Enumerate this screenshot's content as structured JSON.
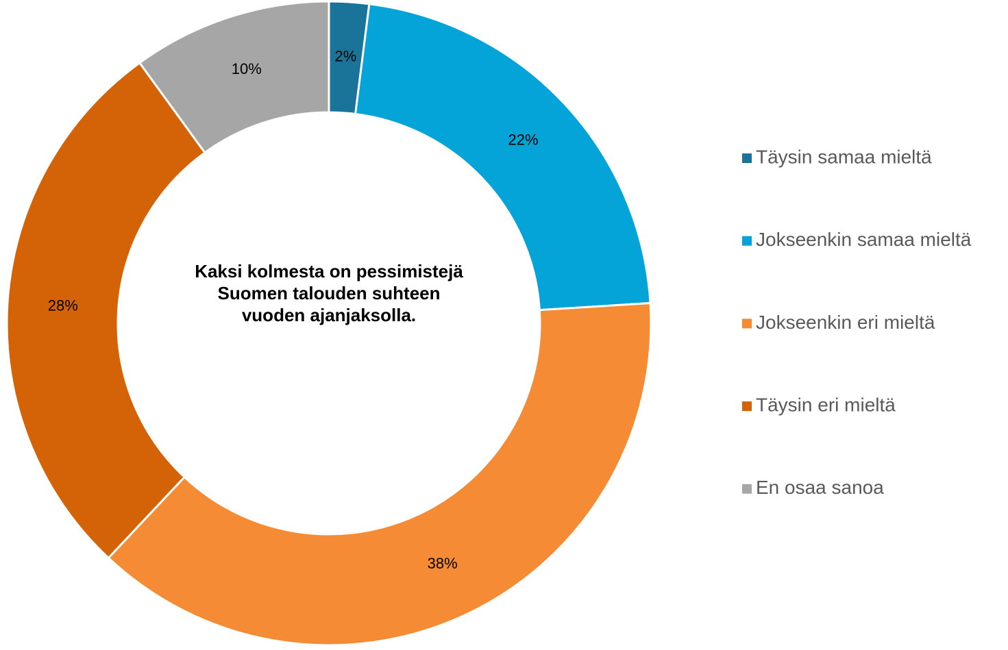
{
  "chart_data": {
    "type": "donut",
    "categories": [
      "Täysin samaa mieltä",
      "Jokseenkin samaa mieltä",
      "Jokseenkin eri mieltä",
      "Täysin eri mieltä",
      "En osaa sanoa"
    ],
    "values": [
      2,
      22,
      38,
      28,
      10
    ],
    "value_labels": [
      "2%",
      "22%",
      "38%",
      "28%",
      "10%"
    ],
    "colors": [
      "#1a7399",
      "#04a3d8",
      "#f58b35",
      "#d46307",
      "#a6a6a6"
    ],
    "annotation": "Kaksi kolmesta on pessimistejä Suomen talouden suhteen vuoden ajanjaksolla.",
    "legend": "right"
  }
}
